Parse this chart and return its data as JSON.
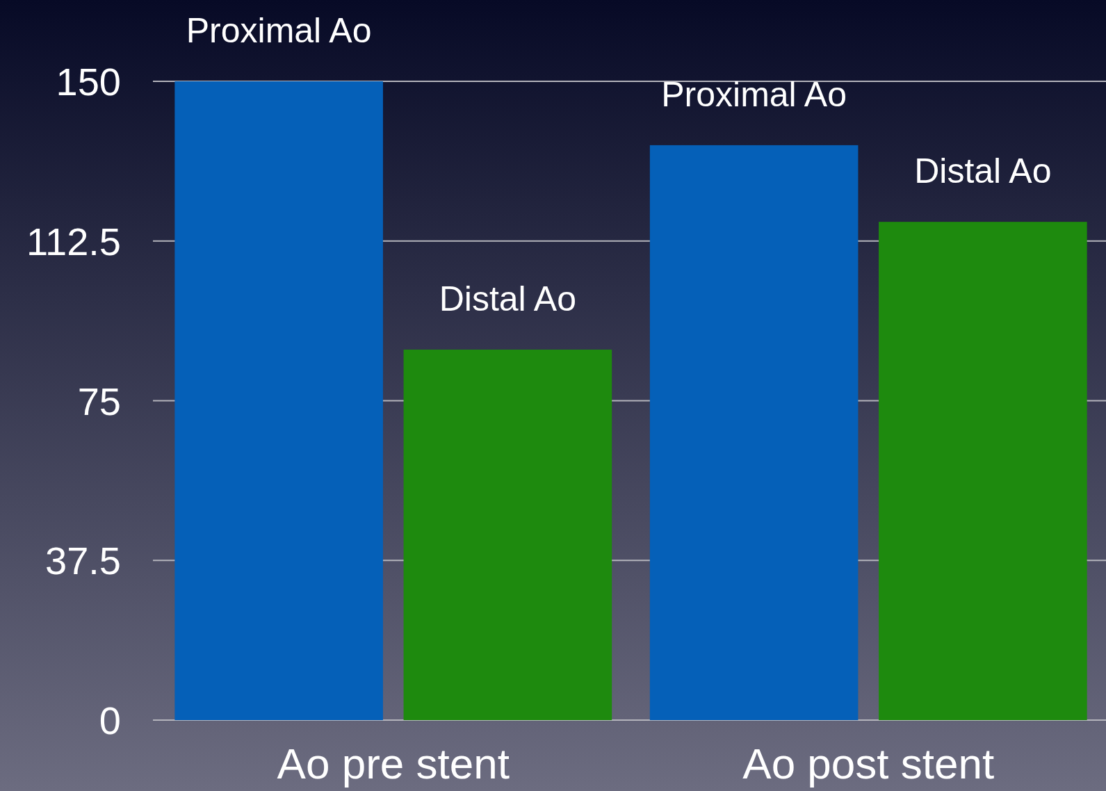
{
  "chart_data": {
    "type": "bar",
    "categories": [
      "Ao pre stent",
      "Ao post stent"
    ],
    "series": [
      {
        "name": "Proximal Ao",
        "color": "#0560b8",
        "values": [
          150,
          135
        ]
      },
      {
        "name": "Distal Ao",
        "color": "#1e8a0e",
        "values": [
          87,
          117
        ]
      }
    ],
    "ylim": [
      0,
      150
    ],
    "yticks": [
      0,
      37.5,
      75,
      112.5,
      150
    ],
    "grid": "y",
    "legend": false
  }
}
